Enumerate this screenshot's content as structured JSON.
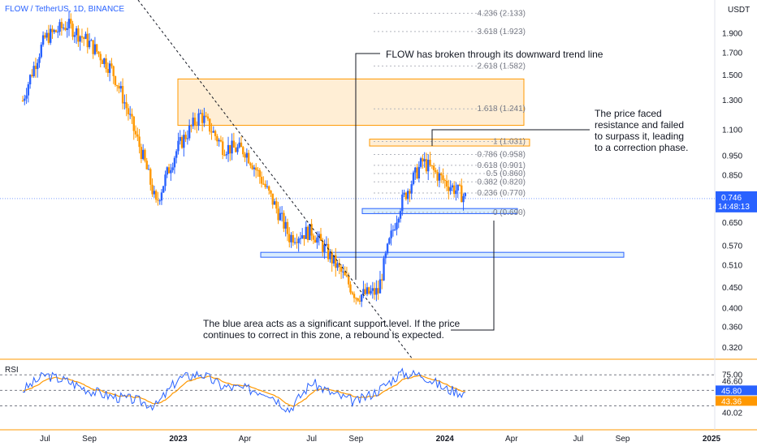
{
  "header": {
    "symbol": "FLOW / TetherUS, 1D, BINANCE",
    "currency": "USDT"
  },
  "price_axis": {
    "ticks": [
      "1.900",
      "1.700",
      "1.500",
      "1.300",
      "1.100",
      "0.950",
      "0.850",
      "0.650",
      "0.570",
      "0.510",
      "0.450",
      "0.400",
      "0.360",
      "0.320"
    ],
    "current_price": "0.746",
    "countdown": "14:48:13"
  },
  "time_axis": {
    "labels": [
      "Jul",
      "Sep",
      "2023",
      "Apr",
      "Jul",
      "Sep",
      "2024",
      "Apr",
      "Jul",
      "Sep",
      "2025"
    ]
  },
  "fib_levels": [
    {
      "label": "4.236 (2.133)",
      "value": 2.133
    },
    {
      "label": "3.618 (1.923)",
      "value": 1.923
    },
    {
      "label": "2.618 (1.582)",
      "value": 1.582
    },
    {
      "label": "1.618 (1.241)",
      "value": 1.241
    },
    {
      "label": "1 (1.031)",
      "value": 1.031
    },
    {
      "label": "0.786 (0.958)",
      "value": 0.958
    },
    {
      "label": "0.618 (0.901)",
      "value": 0.901
    },
    {
      "label": "0.5 (0.860)",
      "value": 0.86
    },
    {
      "label": "0.382 (0.820)",
      "value": 0.82
    },
    {
      "label": "0.236 (0.770)",
      "value": 0.77
    },
    {
      "label": "0 (0.690)",
      "value": 0.69
    }
  ],
  "annotations": {
    "trendline": "FLOW has broken through its downward trend line",
    "resistance": [
      "The price faced",
      "resistance and failed",
      "to surpass it, leading",
      "to a correction phase."
    ],
    "support": [
      "The blue area acts as a significant support level. If the price",
      "continues to correct in this zone, a rebound is expected."
    ]
  },
  "rsi": {
    "label": "RSI",
    "ticks": [
      "75.00",
      "46.60",
      "40.02"
    ],
    "value_blue": "45.80",
    "value_orange": "43.36",
    "colors": {
      "rsi": "#2962ff",
      "ma": "#ff9800"
    }
  },
  "colors": {
    "up": "#2962ff",
    "down": "#ff9800",
    "resistance_zone": "#ffe0b2",
    "support_zone": "#bbdefb",
    "price_badge": "#2962ff"
  },
  "chart_data": {
    "type": "candlestick",
    "y_scale": "log",
    "ylim": [
      0.3,
      2.3
    ],
    "x_unit": "month",
    "x_start": "2022-06",
    "x_end": "2025-01",
    "close_series": [
      [
        "2022-06",
        1.3
      ],
      [
        "2022-07",
        1.85
      ],
      [
        "2022-08",
        2.0
      ],
      [
        "2022-09",
        1.8
      ],
      [
        "2022-10",
        1.55
      ],
      [
        "2022-11",
        1.1
      ],
      [
        "2022-12",
        0.72
      ],
      [
        "2023-01",
        1.0
      ],
      [
        "2023-02",
        1.2
      ],
      [
        "2023-03",
        1.0
      ],
      [
        "2023-04",
        0.98
      ],
      [
        "2023-05",
        0.78
      ],
      [
        "2023-06",
        0.6
      ],
      [
        "2023-07",
        0.62
      ],
      [
        "2023-08",
        0.52
      ],
      [
        "2023-09",
        0.43
      ],
      [
        "2023-10",
        0.44
      ],
      [
        "2023-11",
        0.72
      ],
      [
        "2023-12",
        0.92
      ],
      [
        "2024-01",
        0.82
      ],
      [
        "2024-02",
        0.746
      ]
    ],
    "zones": [
      {
        "name": "resistance",
        "from": 1.13,
        "to": 1.47
      },
      {
        "name": "support",
        "from": 0.535,
        "to": 0.55
      },
      {
        "name": "support",
        "from": 0.685,
        "to": 0.705
      },
      {
        "name": "fib-top",
        "from": 1.005,
        "to": 1.045
      }
    ],
    "rsi_series": [
      [
        "2022-06",
        50
      ],
      [
        "2022-07",
        70
      ],
      [
        "2022-08",
        62
      ],
      [
        "2022-09",
        50
      ],
      [
        "2022-10",
        42
      ],
      [
        "2022-11",
        38
      ],
      [
        "2022-12",
        30
      ],
      [
        "2023-01",
        65
      ],
      [
        "2023-02",
        72
      ],
      [
        "2023-03",
        55
      ],
      [
        "2023-04",
        52
      ],
      [
        "2023-05",
        48
      ],
      [
        "2023-06",
        25
      ],
      [
        "2023-07",
        60
      ],
      [
        "2023-08",
        45
      ],
      [
        "2023-09",
        35
      ],
      [
        "2023-10",
        50
      ],
      [
        "2023-11",
        72
      ],
      [
        "2023-12",
        70
      ],
      [
        "2024-01",
        52
      ],
      [
        "2024-02",
        45.8
      ]
    ]
  }
}
